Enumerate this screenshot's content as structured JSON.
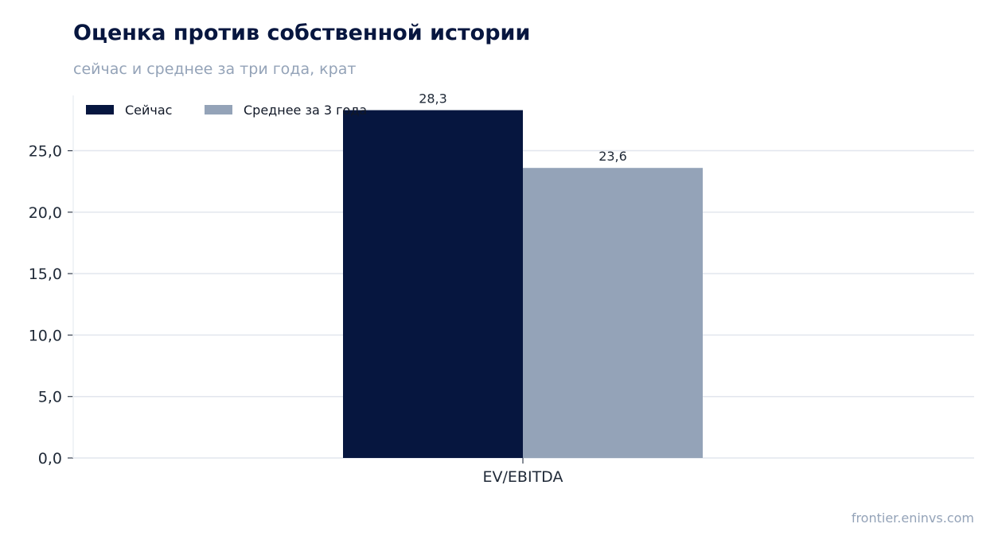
{
  "header": {
    "title": "Оценка против собственной истории",
    "subtitle": "сейчас и среднее за три года, крат"
  },
  "footer": {
    "source": "frontier.eninvs.com"
  },
  "colors": {
    "now": "#06163f",
    "avg": "#94a3b8",
    "grid": "#e2e6ee"
  },
  "chart_data": {
    "type": "bar",
    "categories": [
      "EV/EBITDA"
    ],
    "series": [
      {
        "name": "Сейчас",
        "values": [
          28.3
        ],
        "labels": [
          "28,3"
        ]
      },
      {
        "name": "Среднее за 3 года",
        "values": [
          23.6
        ],
        "labels": [
          "23,6"
        ]
      }
    ],
    "ylim": [
      0,
      29.5
    ],
    "yticks": [
      0,
      5,
      10,
      15,
      20,
      25
    ],
    "ytick_labels": [
      "0,0",
      "5,0",
      "10,0",
      "15,0",
      "20,0",
      "25,0"
    ],
    "legend": "top-left",
    "grid": true
  }
}
